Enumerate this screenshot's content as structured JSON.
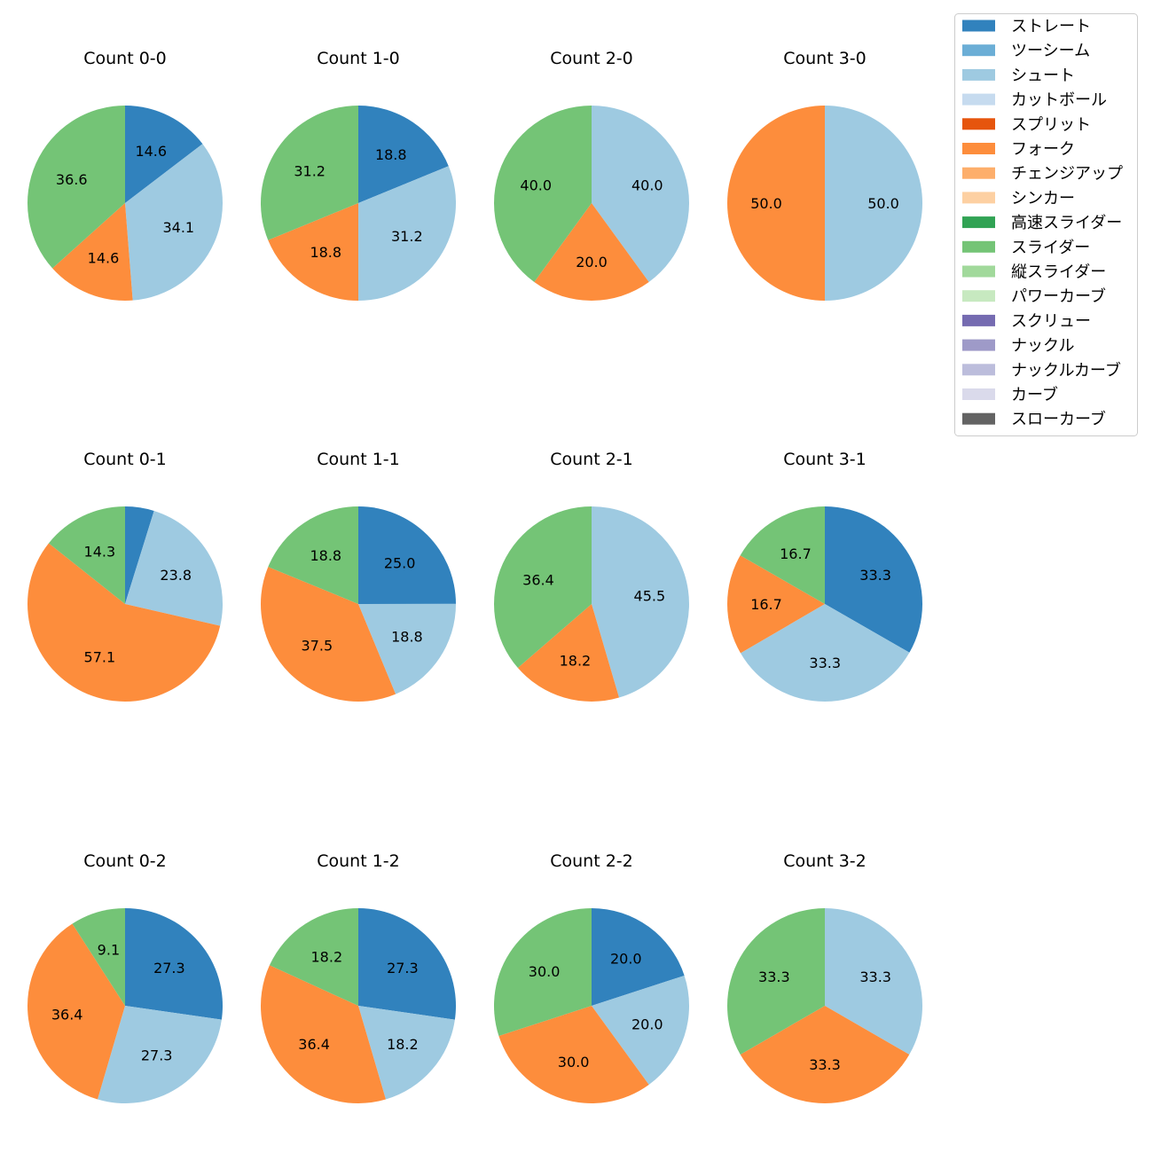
{
  "chart_data": {
    "type": "pie",
    "legend": {
      "placement": "top-right",
      "entries": [
        {
          "label": "ストレート",
          "color": "#3182bd"
        },
        {
          "label": "ツーシーム",
          "color": "#6baed6"
        },
        {
          "label": "シュート",
          "color": "#9ecae1"
        },
        {
          "label": "カットボール",
          "color": "#c6dbef"
        },
        {
          "label": "スプリット",
          "color": "#e6550d"
        },
        {
          "label": "フォーク",
          "color": "#fd8d3c"
        },
        {
          "label": "チェンジアップ",
          "color": "#fdae6b"
        },
        {
          "label": "シンカー",
          "color": "#fdd0a2"
        },
        {
          "label": "高速スライダー",
          "color": "#31a354"
        },
        {
          "label": "スライダー",
          "color": "#74c476"
        },
        {
          "label": "縦スライダー",
          "color": "#a1d99b"
        },
        {
          "label": "パワーカーブ",
          "color": "#c7e9c0"
        },
        {
          "label": "スクリュー",
          "color": "#756bb1"
        },
        {
          "label": "ナックル",
          "color": "#9e9ac8"
        },
        {
          "label": "ナックルカーブ",
          "color": "#bcbddc"
        },
        {
          "label": "カーブ",
          "color": "#dadaeb"
        },
        {
          "label": "スローカーブ",
          "color": "#636363"
        }
      ]
    },
    "pies": [
      {
        "title": "Count 0-0",
        "slices": [
          {
            "pitch": "ストレート",
            "value": 14.6
          },
          {
            "pitch": "シュート",
            "value": 34.1
          },
          {
            "pitch": "フォーク",
            "value": 14.6
          },
          {
            "pitch": "スライダー",
            "value": 36.6
          }
        ]
      },
      {
        "title": "Count 1-0",
        "slices": [
          {
            "pitch": "ストレート",
            "value": 18.8
          },
          {
            "pitch": "シュート",
            "value": 31.2
          },
          {
            "pitch": "フォーク",
            "value": 18.8
          },
          {
            "pitch": "スライダー",
            "value": 31.2
          }
        ]
      },
      {
        "title": "Count 2-0",
        "slices": [
          {
            "pitch": "シュート",
            "value": 40.0
          },
          {
            "pitch": "フォーク",
            "value": 20.0
          },
          {
            "pitch": "スライダー",
            "value": 40.0
          }
        ]
      },
      {
        "title": "Count 3-0",
        "slices": [
          {
            "pitch": "シュート",
            "value": 50.0
          },
          {
            "pitch": "フォーク",
            "value": 50.0
          }
        ]
      },
      {
        "title": "Count 0-1",
        "slices": [
          {
            "pitch": "ストレート",
            "value": 4.8,
            "hide_label": true
          },
          {
            "pitch": "シュート",
            "value": 23.8
          },
          {
            "pitch": "フォーク",
            "value": 57.1
          },
          {
            "pitch": "スライダー",
            "value": 14.3
          }
        ]
      },
      {
        "title": "Count 1-1",
        "slices": [
          {
            "pitch": "ストレート",
            "value": 25.0
          },
          {
            "pitch": "シュート",
            "value": 18.8
          },
          {
            "pitch": "フォーク",
            "value": 37.5
          },
          {
            "pitch": "スライダー",
            "value": 18.8
          }
        ]
      },
      {
        "title": "Count 2-1",
        "slices": [
          {
            "pitch": "シュート",
            "value": 45.5
          },
          {
            "pitch": "フォーク",
            "value": 18.2
          },
          {
            "pitch": "スライダー",
            "value": 36.4
          }
        ]
      },
      {
        "title": "Count 3-1",
        "slices": [
          {
            "pitch": "ストレート",
            "value": 33.3
          },
          {
            "pitch": "シュート",
            "value": 33.3
          },
          {
            "pitch": "フォーク",
            "value": 16.7
          },
          {
            "pitch": "スライダー",
            "value": 16.7
          }
        ]
      },
      {
        "title": "Count 0-2",
        "slices": [
          {
            "pitch": "ストレート",
            "value": 27.3
          },
          {
            "pitch": "シュート",
            "value": 27.3
          },
          {
            "pitch": "フォーク",
            "value": 36.4
          },
          {
            "pitch": "スライダー",
            "value": 9.1
          }
        ]
      },
      {
        "title": "Count 1-2",
        "slices": [
          {
            "pitch": "ストレート",
            "value": 27.3
          },
          {
            "pitch": "シュート",
            "value": 18.2
          },
          {
            "pitch": "フォーク",
            "value": 36.4
          },
          {
            "pitch": "スライダー",
            "value": 18.2
          }
        ]
      },
      {
        "title": "Count 2-2",
        "slices": [
          {
            "pitch": "ストレート",
            "value": 20.0
          },
          {
            "pitch": "シュート",
            "value": 20.0
          },
          {
            "pitch": "フォーク",
            "value": 30.0
          },
          {
            "pitch": "スライダー",
            "value": 30.0
          }
        ]
      },
      {
        "title": "Count 3-2",
        "slices": [
          {
            "pitch": "シュート",
            "value": 33.3
          },
          {
            "pitch": "フォーク",
            "value": 33.3
          },
          {
            "pitch": "スライダー",
            "value": 33.3
          }
        ]
      }
    ]
  }
}
